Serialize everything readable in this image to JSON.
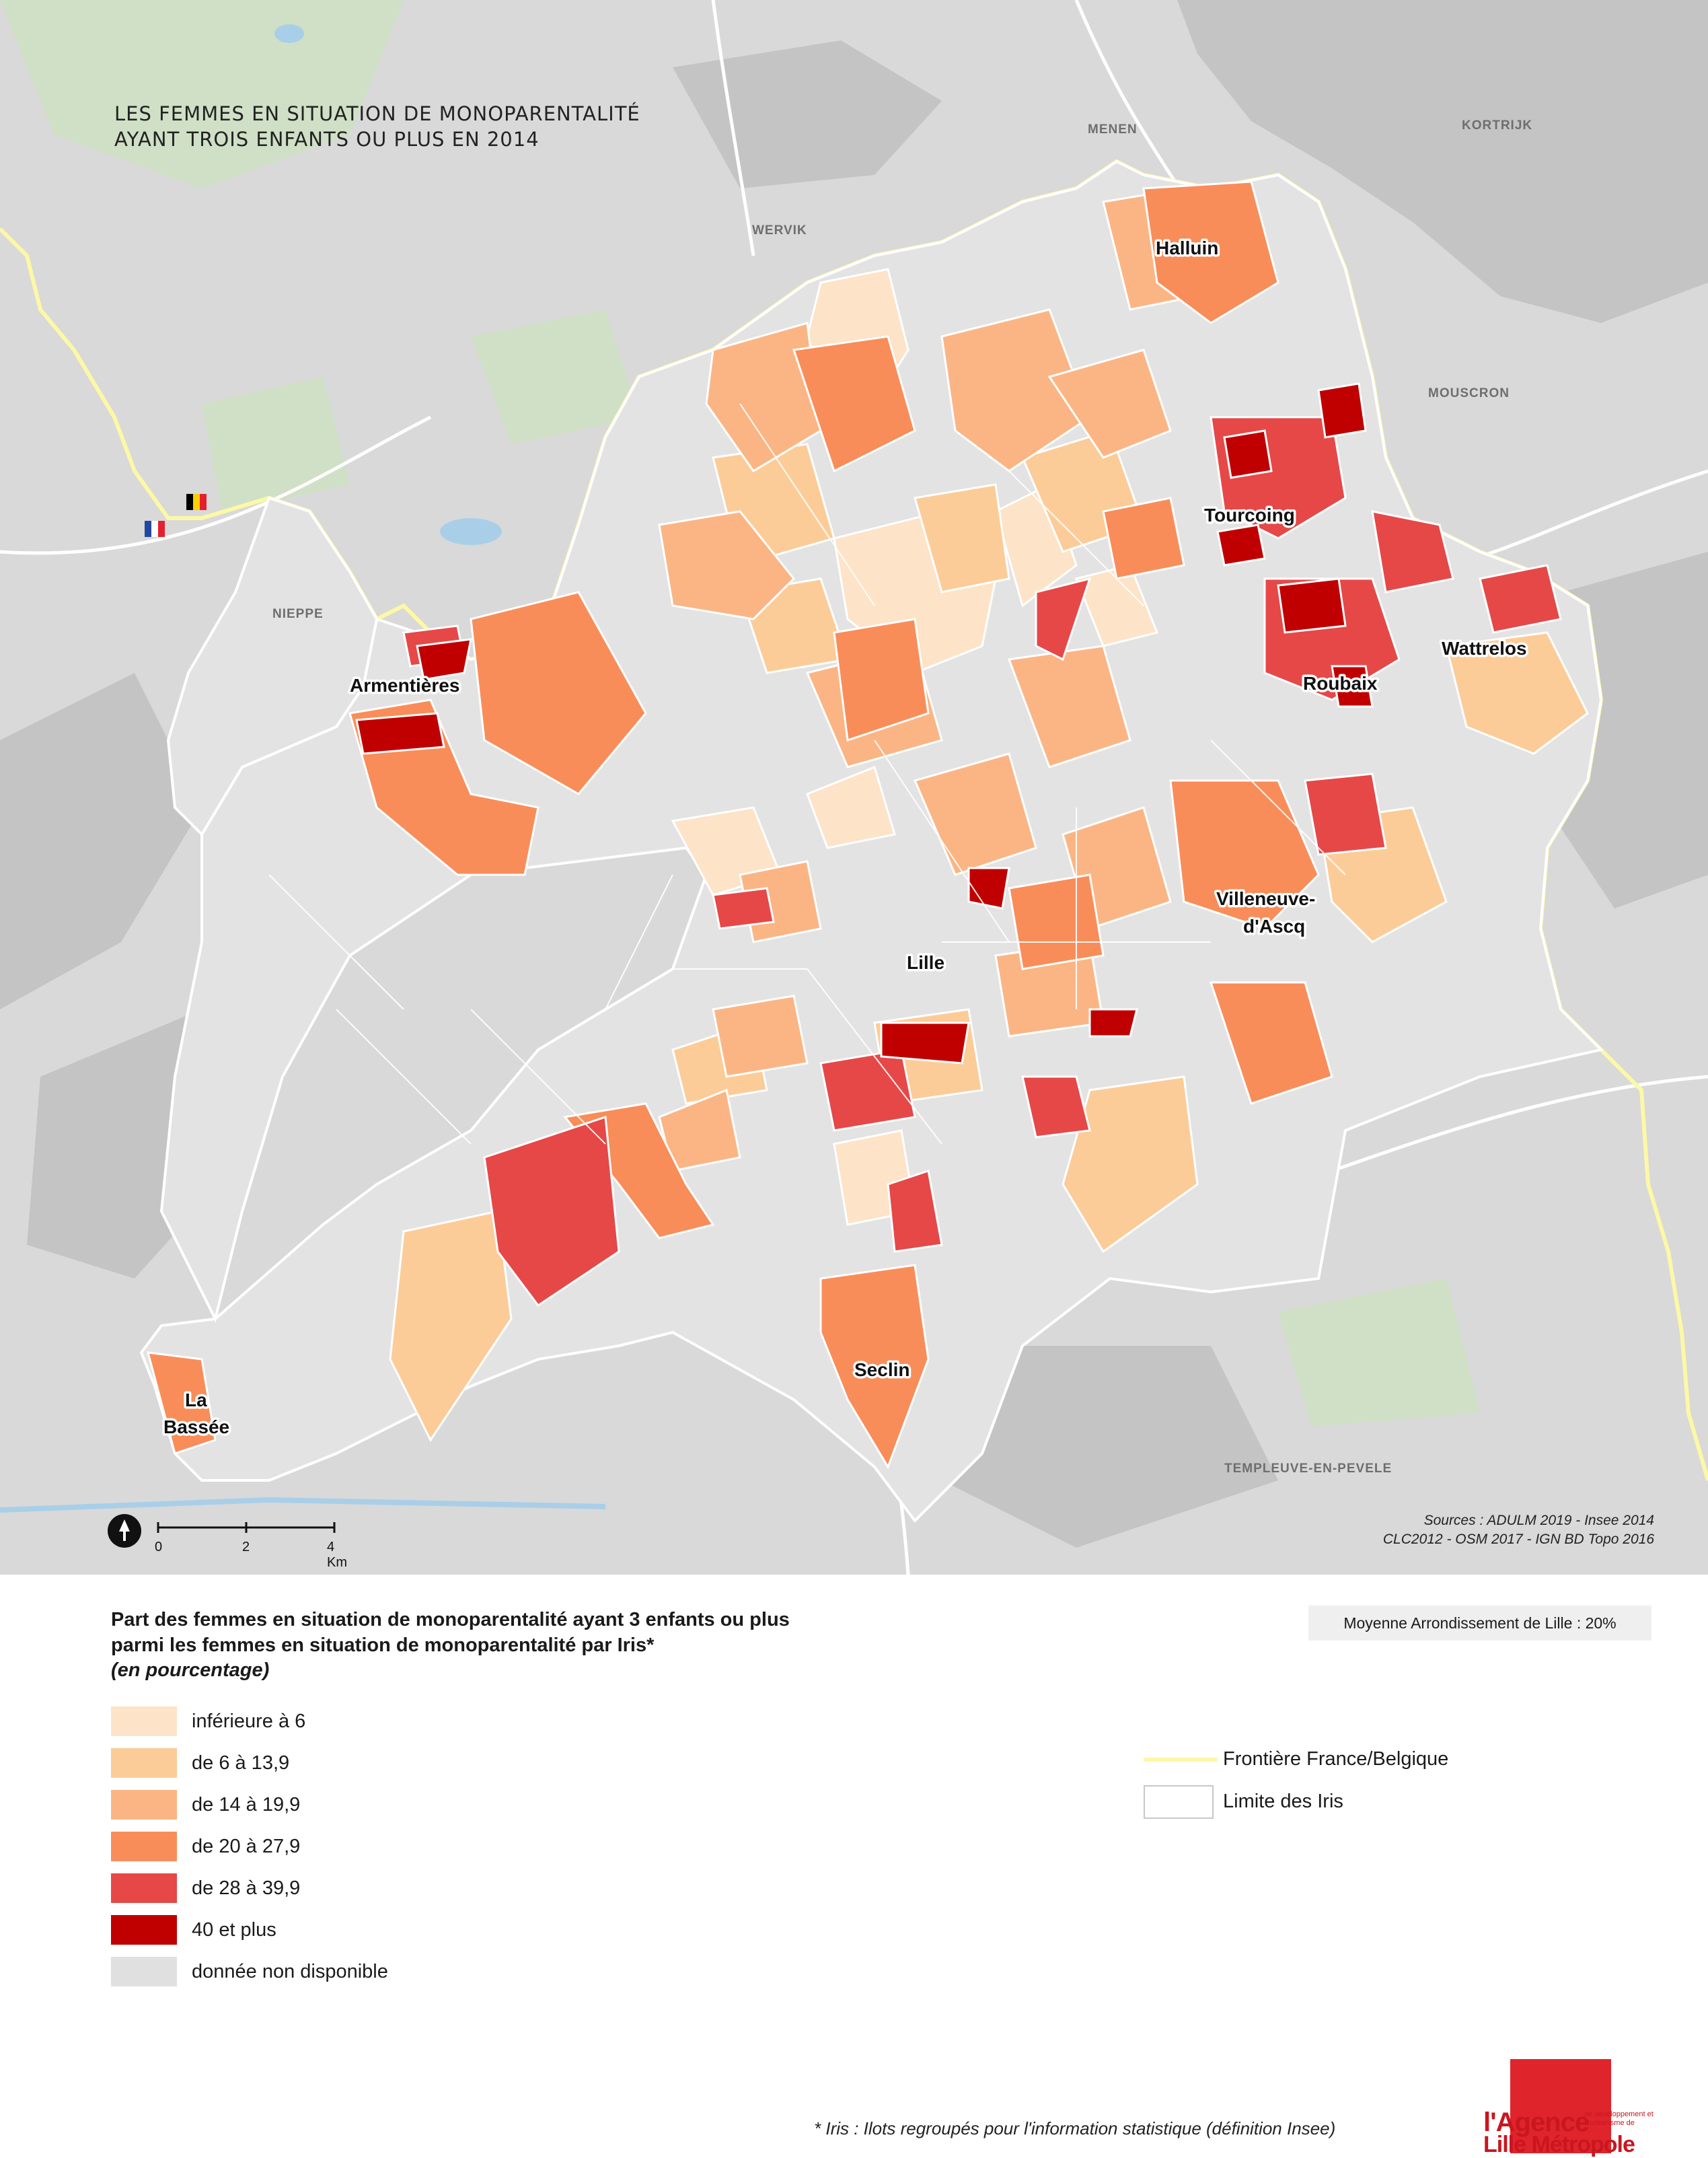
{
  "map": {
    "title_line1": "LES FEMMES EN SITUATION DE MONOPARENTALITÉ",
    "title_line2": "AYANT TROIS ENFANTS OU PLUS EN 2014",
    "city_labels": [
      "Halluin",
      "Tourcoing",
      "Wattrelos",
      "Roubaix",
      "Armentières",
      "Villeneuve-",
      "d'Ascq",
      "Lille",
      "Seclin",
      "La",
      "Bassée"
    ],
    "external_labels": [
      "MENEN",
      "KORTRIJK",
      "WERVIK",
      "MOUSCRON",
      "NIEPPE",
      "TEMPLEUVE-EN-PEVELE"
    ],
    "sources_line1": "Sources : ADULM 2019 - Insee 2014",
    "sources_line2": "CLC2012 -  OSM 2017 - IGN BD Topo 2016",
    "scale": {
      "labels": [
        "0",
        "2",
        "4 Km"
      ]
    },
    "flags": [
      "belgium-flag",
      "france-flag"
    ]
  },
  "legend": {
    "title_line1": "Part des femmes en situation de monoparentalité ayant 3 enfants ou plus",
    "title_line2": "parmi les femmes en situation de monoparentalité par Iris*",
    "subtitle": "(en pourcentage)",
    "classes": [
      {
        "label": "inférieure à 6",
        "color": "#fde3c8"
      },
      {
        "label": "de 6 à 13,9",
        "color": "#fccc98"
      },
      {
        "label": "de 14 à 19,9",
        "color": "#fbb584"
      },
      {
        "label": "de 20 à 27,9",
        "color": "#f98d59"
      },
      {
        "label": "de 28 à 39,9",
        "color": "#e64848"
      },
      {
        "label": "40 et plus",
        "color": "#c00000"
      },
      {
        "label": "donnée non disponible",
        "color": "#e0e0e0"
      }
    ],
    "average": "Moyenne Arrondissement de Lille : 20%",
    "border_legend": "Frontière France/Belgique",
    "iris_legend": "Limite des Iris",
    "border_color": "#fcf8a6"
  },
  "footnote": "* Iris : Ilots regroupés pour l'information statistique (définition Insee)",
  "logo": {
    "line1": "l'Agence",
    "line2": "Lille Métropole",
    "small": "de développement et d'urbanisme de"
  }
}
